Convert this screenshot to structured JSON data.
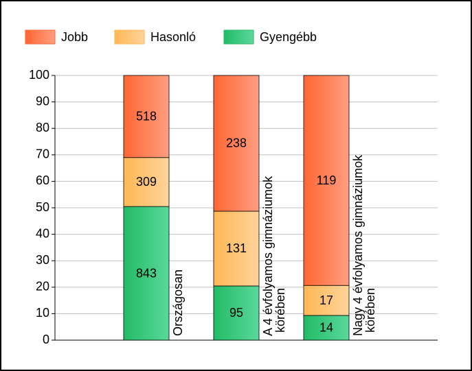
{
  "chart_data": {
    "type": "bar",
    "stacked": "percent",
    "categories": [
      "Országosan",
      "A 4 évfolyamos gimnáziumok körében",
      "Nagy 4 évfolyamos gimnáziumok körében"
    ],
    "series": [
      {
        "name": "Jobb",
        "color": "#ff6633",
        "values": [
          518,
          238,
          119
        ]
      },
      {
        "name": "Hasonló",
        "color": "#ffb855",
        "values": [
          309,
          131,
          17
        ]
      },
      {
        "name": "Gyengébb",
        "color": "#22bb66",
        "values": [
          843,
          95,
          14
        ]
      }
    ],
    "ylim": [
      0,
      100
    ],
    "yticks": [
      0,
      10,
      20,
      30,
      40,
      50,
      60,
      70,
      80,
      90,
      100
    ],
    "grid": true,
    "legend": "top"
  }
}
